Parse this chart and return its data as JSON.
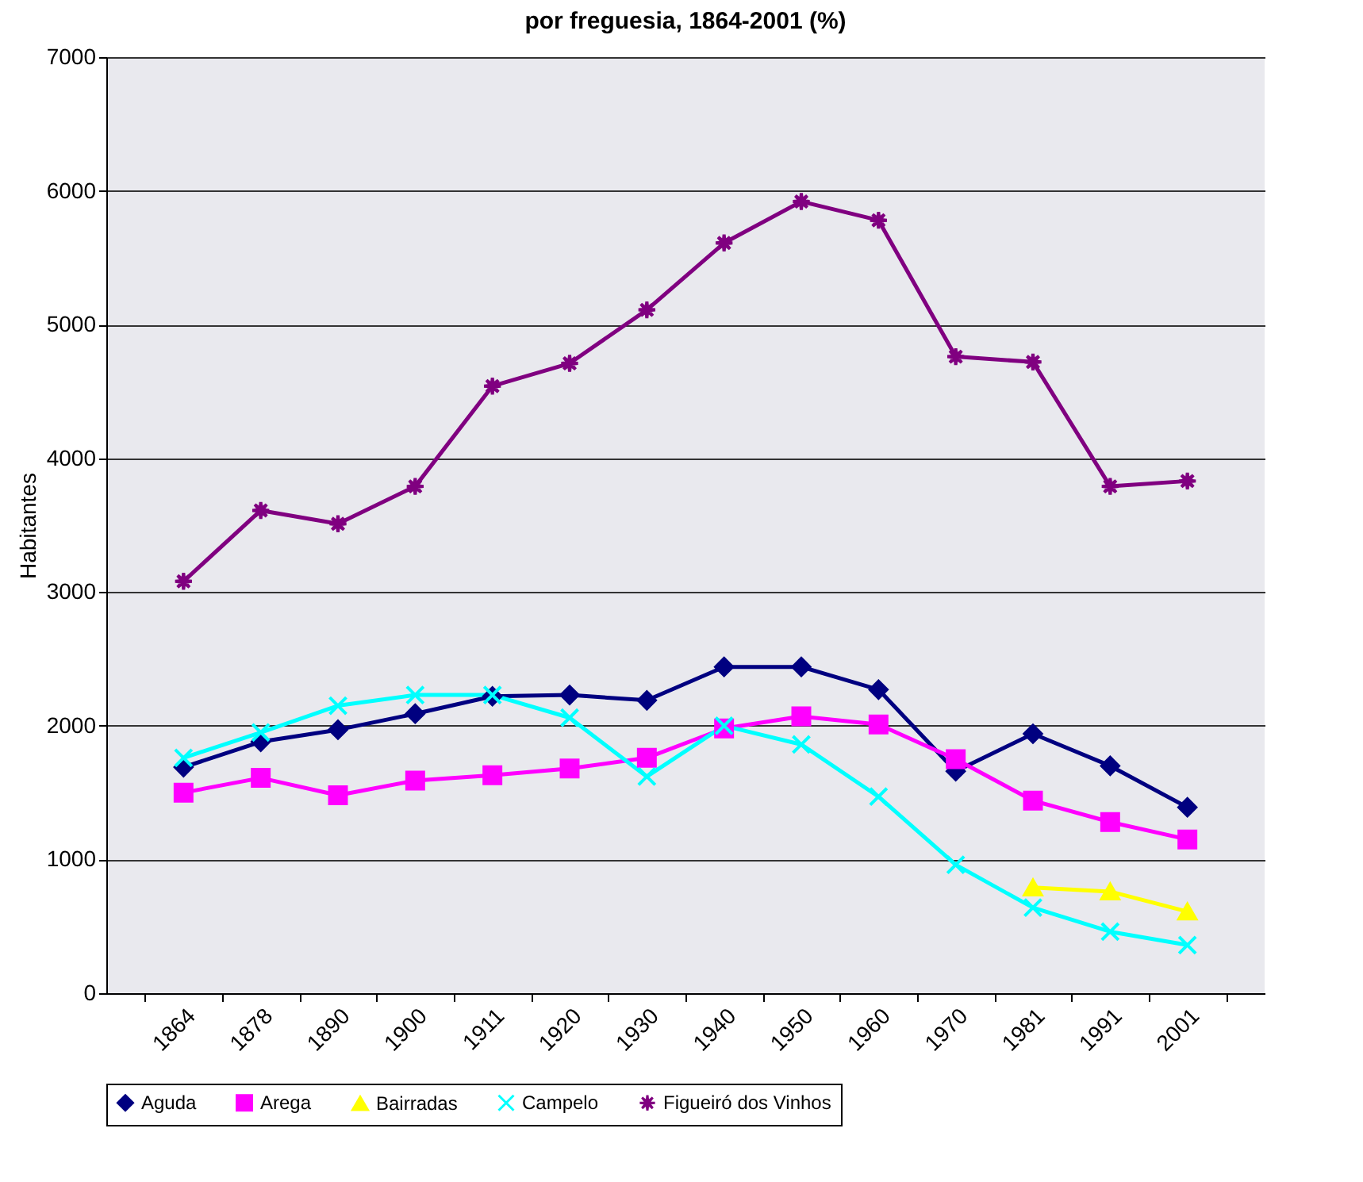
{
  "chart_data": {
    "type": "line",
    "title": "por freguesia, 1864-2001 (%)",
    "ylabel": "Habitantes",
    "categories": [
      "1864",
      "1878",
      "1890",
      "1900",
      "1911",
      "1920",
      "1930",
      "1940",
      "1950",
      "1960",
      "1970",
      "1981",
      "1991",
      "2001"
    ],
    "series": [
      {
        "name": "Aguda",
        "color": "#000080",
        "marker": "diamond",
        "values": [
          1690,
          1880,
          1970,
          2090,
          2220,
          2230,
          2190,
          2440,
          2440,
          2270,
          1660,
          1940,
          1700,
          1390
        ]
      },
      {
        "name": "Arega",
        "color": "#ff00ff",
        "marker": "square",
        "values": [
          1500,
          1610,
          1480,
          1590,
          1630,
          1680,
          1760,
          1980,
          2070,
          2010,
          1750,
          1440,
          1280,
          1150
        ]
      },
      {
        "name": "Bairradas",
        "color": "#ffff00",
        "marker": "triangle",
        "values": [
          null,
          null,
          null,
          null,
          null,
          null,
          null,
          null,
          null,
          null,
          null,
          790,
          760,
          610
        ]
      },
      {
        "name": "Campelo",
        "color": "#00ffff",
        "marker": "cross",
        "values": [
          1760,
          1950,
          2150,
          2230,
          2230,
          2060,
          1620,
          2000,
          1860,
          1470,
          960,
          640,
          460,
          360
        ]
      },
      {
        "name": "Figueiró dos Vinhos",
        "color": "#800080",
        "marker": "star",
        "values": [
          3080,
          3610,
          3510,
          3790,
          4540,
          4710,
          5110,
          5610,
          5920,
          5780,
          4760,
          4720,
          3790,
          3830
        ]
      }
    ],
    "ylim": [
      0,
      7000
    ],
    "yticks": [
      0,
      1000,
      2000,
      3000,
      4000,
      5000,
      6000,
      7000
    ],
    "grid": "y",
    "legend": "bottom"
  }
}
